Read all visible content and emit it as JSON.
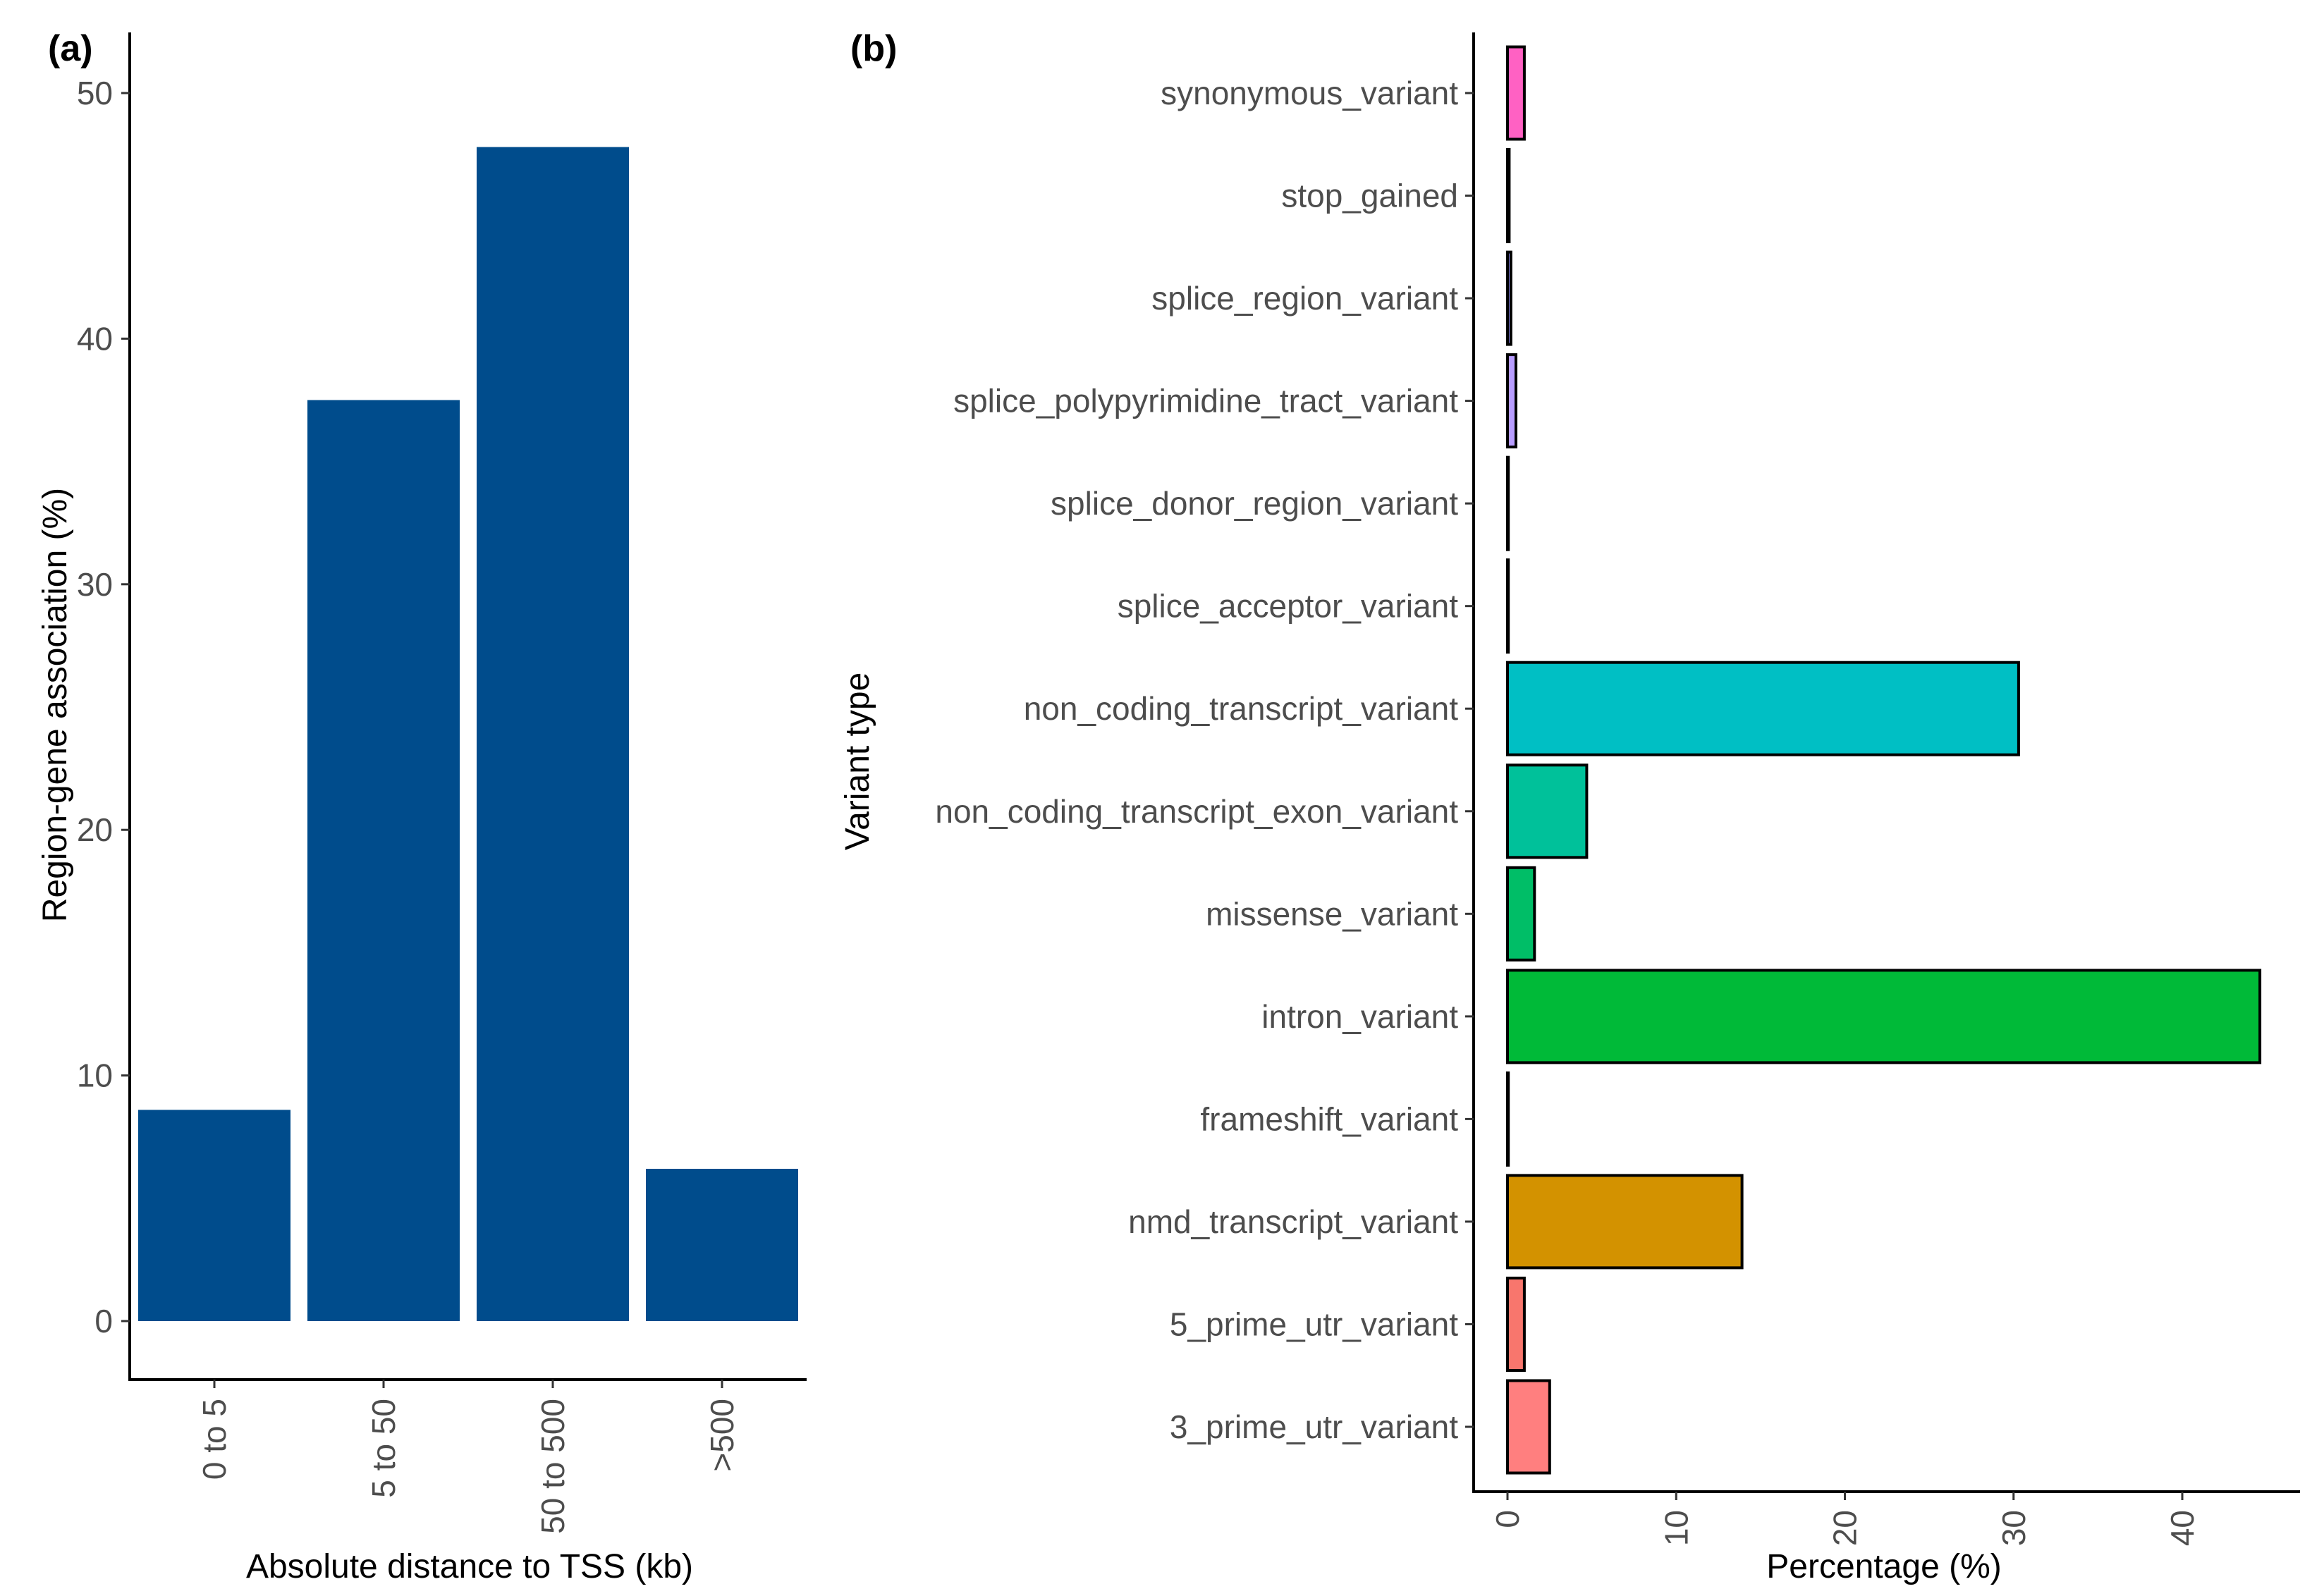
{
  "chart_data": [
    {
      "panel": "(a)",
      "type": "bar",
      "orientation": "vertical",
      "title": "",
      "xlabel": "Absolute distance to TSS (kb)",
      "ylabel": "Region-gene association (%)",
      "categories": [
        "0 to 5",
        "5 to 50",
        "50 to 500",
        ">500"
      ],
      "values": [
        8.6,
        37.5,
        47.8,
        6.2
      ],
      "ylim": [
        0,
        50
      ],
      "yticks": [
        0,
        10,
        20,
        30,
        40,
        50
      ],
      "bar_color": "#004c8c",
      "grid": false,
      "legend": "none"
    },
    {
      "panel": "(b)",
      "type": "bar",
      "orientation": "horizontal",
      "title": "",
      "xlabel": "Percentage (%)",
      "ylabel": "Variant type",
      "categories": [
        "synonymous_variant",
        "stop_gained",
        "splice_region_variant",
        "splice_polypyrimidine_tract_variant",
        "splice_donor_region_variant",
        "splice_acceptor_variant",
        "non_coding_transcript_variant",
        "non_coding_transcript_exon_variant",
        "missense_variant",
        "intron_variant",
        "frameshift_variant",
        "nmd_transcript_variant",
        "5_prime_utr_variant",
        "3_prime_utr_variant"
      ],
      "values": [
        1.0,
        0.1,
        0.2,
        0.5,
        0.05,
        0.05,
        30.3,
        4.7,
        1.6,
        44.6,
        0.05,
        13.9,
        1.0,
        2.5
      ],
      "colors": [
        "#ff61c3",
        "#db72fb",
        "#9590ff",
        "#b89dff",
        "#00a9ff",
        "#00b8e7",
        "#00bfc4",
        "#00c19a",
        "#00be67",
        "#00ba38",
        "#7cae00",
        "#d39200",
        "#f8766d",
        "#ff7f7f"
      ],
      "xlim": [
        -2.2,
        46.5
      ],
      "xticks": [
        0,
        10,
        20,
        30,
        40
      ],
      "grid": false,
      "legend": "none"
    }
  ]
}
